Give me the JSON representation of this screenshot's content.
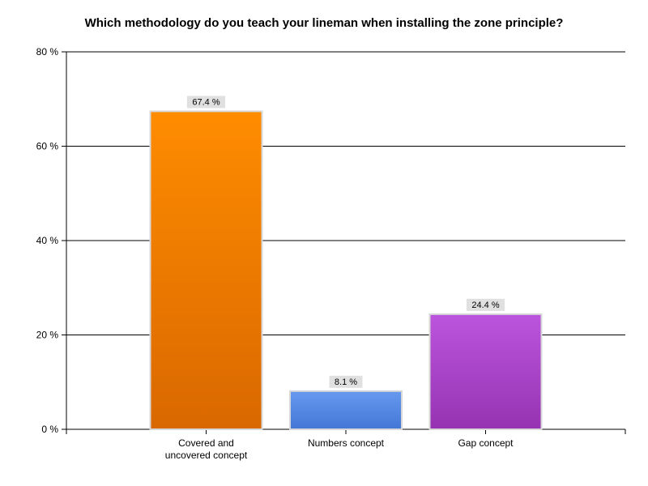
{
  "chart_data": {
    "type": "bar",
    "title": "Which methodology do you teach your lineman when installing the zone principle?",
    "categories": [
      [
        "Covered and",
        "uncovered concept"
      ],
      [
        "Numbers concept"
      ],
      [
        "Gap concept"
      ]
    ],
    "values": [
      67.4,
      8.1,
      24.4
    ],
    "data_labels": [
      "67.4 %",
      "8.1 %",
      "24.4 %"
    ],
    "ylim": [
      0,
      80
    ],
    "yticks": [
      0,
      20,
      40,
      60,
      80
    ],
    "ytick_labels": [
      "0 %",
      "20 %",
      "40 %",
      "60 %",
      "80 %"
    ],
    "xlabel": "",
    "ylabel": "",
    "grid": true,
    "colors": [
      [
        "#ff8c00",
        "#d96800"
      ],
      [
        "#6699ee",
        "#4477d6"
      ],
      [
        "#bb55dd",
        "#9633b2"
      ]
    ]
  }
}
